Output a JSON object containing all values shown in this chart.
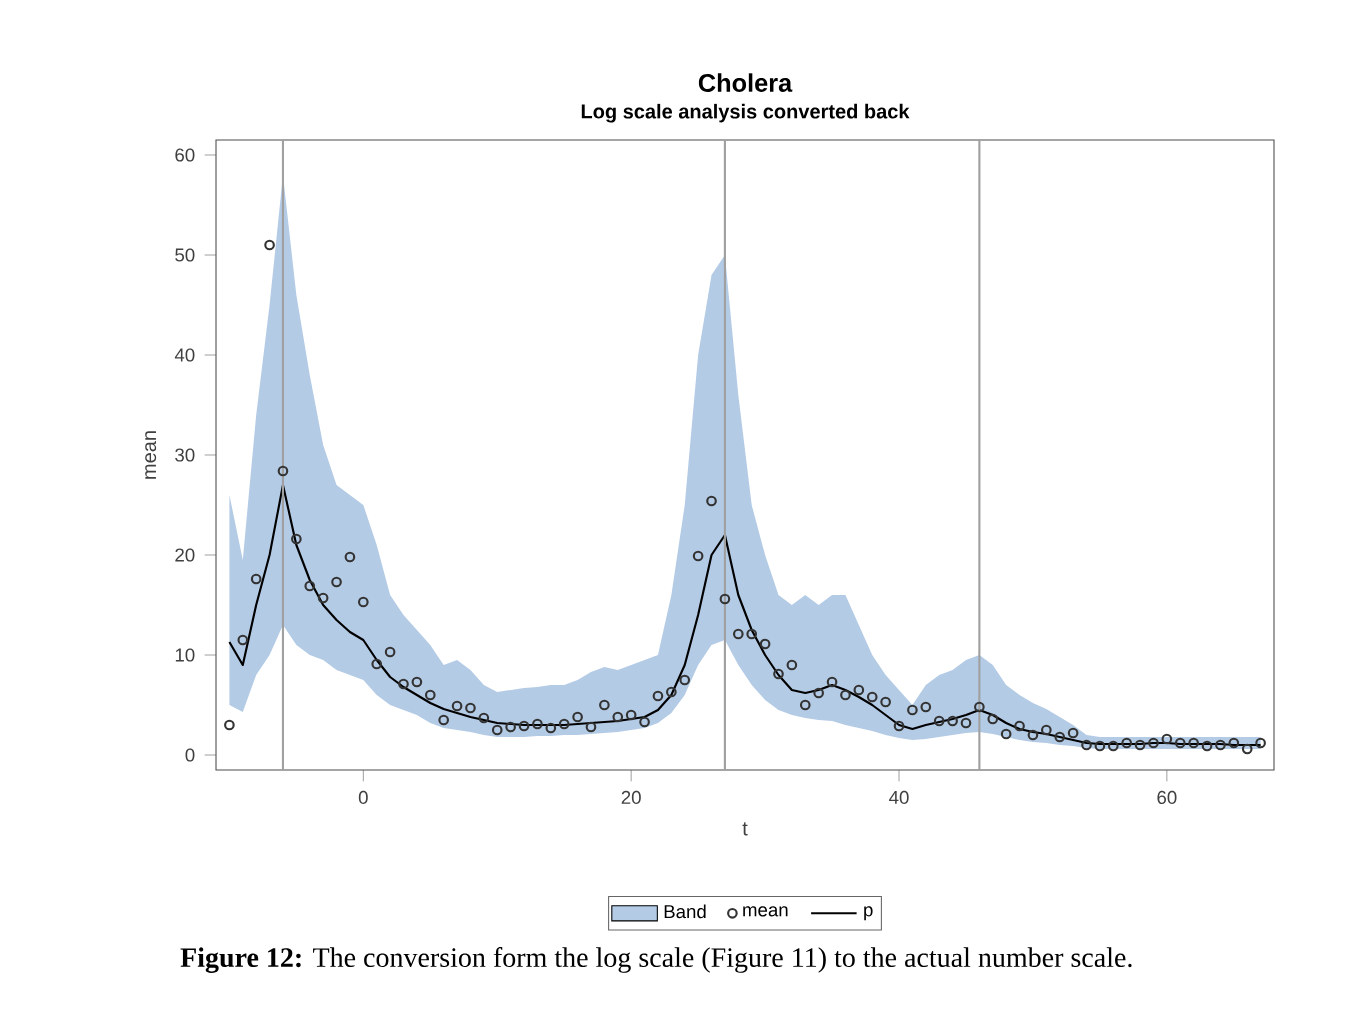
{
  "chart_data": {
    "type": "line",
    "title": "Cholera",
    "subtitle": "Log scale analysis converted back",
    "xlabel": "t",
    "ylabel": "mean",
    "x": [
      -10,
      -9,
      -8,
      -7,
      -6,
      -5,
      -4,
      -3,
      -2,
      -1,
      0,
      1,
      2,
      3,
      4,
      5,
      6,
      7,
      8,
      9,
      10,
      11,
      12,
      13,
      14,
      15,
      16,
      17,
      18,
      19,
      20,
      21,
      22,
      23,
      24,
      25,
      26,
      27,
      28,
      29,
      30,
      31,
      32,
      33,
      34,
      35,
      36,
      37,
      38,
      39,
      40,
      41,
      42,
      43,
      44,
      45,
      46,
      47,
      48,
      49,
      50,
      51,
      52,
      53,
      54,
      55,
      56,
      57,
      58,
      59,
      60,
      61,
      62,
      63,
      64,
      65,
      66,
      67
    ],
    "series": [
      {
        "name": "Band",
        "type": "area",
        "color": "#b4cbe6",
        "values": [
          null,
          null,
          null,
          null,
          null,
          null,
          null,
          null,
          null,
          null,
          null,
          null,
          null,
          null,
          null,
          null,
          null,
          null,
          null,
          null,
          null,
          null,
          null,
          null,
          null,
          null,
          null,
          null,
          null,
          null,
          null,
          null,
          null,
          null,
          null,
          null,
          null,
          null,
          null,
          null,
          null,
          null,
          null,
          null,
          null,
          null,
          null,
          null,
          null,
          null,
          null,
          null,
          null,
          null,
          null,
          null,
          null,
          null,
          null,
          null,
          null,
          null,
          null,
          null,
          null,
          null,
          null,
          null,
          null,
          null,
          null,
          null,
          null,
          null,
          null,
          null,
          null,
          null
        ]
      },
      {
        "name": "mean",
        "type": "scatter",
        "color": "#333333",
        "marker": "circle",
        "values": [
          3,
          11.5,
          17.6,
          51,
          28.4,
          21.6,
          16.9,
          15.7,
          17.3,
          19.8,
          15.3,
          9.1,
          10.3,
          7.1,
          7.3,
          6,
          3.5,
          4.9,
          4.7,
          3.7,
          2.5,
          2.8,
          2.9,
          3.1,
          2.7,
          3.1,
          3.8,
          2.8,
          5,
          3.8,
          4,
          3.3,
          5.9,
          6.3,
          7.5,
          19.9,
          25.4,
          15.6,
          12.1,
          12.1,
          11.1,
          8.1,
          9,
          5,
          6.2,
          7.3,
          6,
          6.5,
          5.8,
          5.3,
          2.9,
          4.5,
          4.8,
          3.4,
          3.4,
          3.2,
          4.8,
          3.6,
          2.1,
          2.9,
          2,
          2.5,
          1.8,
          2.2,
          1,
          0.9,
          0.9,
          1.2,
          1,
          1.2,
          1.6,
          1.2,
          1.2,
          0.9,
          1,
          1.2,
          0.6,
          1.2
        ]
      },
      {
        "name": "p",
        "type": "line",
        "color": "#000000",
        "line_style": "solid",
        "values": [
          11.3,
          9,
          15,
          20,
          27,
          21,
          17.5,
          15,
          13.5,
          12.3,
          11.5,
          9.5,
          7.8,
          6.8,
          6,
          5.2,
          4.6,
          4.2,
          3.8,
          3.5,
          3.2,
          3.1,
          3,
          3,
          3,
          3,
          3.1,
          3.2,
          3.3,
          3.4,
          3.6,
          3.8,
          4.5,
          6,
          9,
          14,
          20,
          22,
          16,
          12.5,
          10,
          8,
          6.5,
          6.2,
          6.5,
          7,
          6.5,
          5.8,
          5,
          4,
          3,
          2.6,
          3,
          3.3,
          3.6,
          4,
          4.5,
          4,
          3.2,
          2.6,
          2.3,
          2.1,
          1.8,
          1.5,
          1.2,
          1.1,
          1.1,
          1.1,
          1.1,
          1.2,
          1.2,
          1.1,
          1.1,
          1.1,
          1.1,
          1,
          1,
          1
        ],
        "lower": [
          5,
          4.3,
          8,
          10,
          13,
          11,
          10,
          9.5,
          8.5,
          8,
          7.5,
          6,
          5,
          4.5,
          4,
          3.2,
          2.7,
          2.5,
          2.3,
          2,
          1.8,
          1.8,
          1.8,
          1.9,
          1.9,
          2,
          2,
          2.1,
          2.2,
          2.3,
          2.5,
          2.7,
          3.2,
          4.2,
          6,
          9,
          11,
          11.5,
          9,
          7,
          5.5,
          4.5,
          4,
          3.7,
          3.5,
          3.4,
          3,
          2.7,
          2.4,
          2,
          1.7,
          1.5,
          1.6,
          1.8,
          2,
          2.2,
          2.3,
          2.1,
          1.8,
          1.5,
          1.3,
          1.2,
          1,
          0.9,
          0.7,
          0.6,
          0.6,
          0.6,
          0.6,
          0.6,
          0.6,
          0.6,
          0.6,
          0.6,
          0.6,
          0.6,
          0.6,
          0.6
        ],
        "upper": [
          26,
          19.5,
          34,
          45,
          58,
          46,
          38,
          31,
          27,
          26,
          25,
          21,
          16,
          14,
          12.5,
          11,
          9,
          9.5,
          8.5,
          7,
          6.3,
          6.5,
          6.7,
          6.8,
          7,
          7,
          7.5,
          8.3,
          8.8,
          8.5,
          9,
          9.5,
          10,
          16,
          25,
          40,
          48,
          50,
          36,
          25,
          20,
          16,
          15,
          16,
          15,
          16,
          16,
          13,
          10,
          8,
          6.5,
          5,
          7,
          8,
          8.5,
          9.5,
          10,
          9,
          7,
          6,
          5.2,
          4.6,
          3.8,
          3,
          2,
          1.8,
          1.8,
          1.8,
          1.8,
          1.8,
          1.8,
          1.8,
          1.8,
          1.8,
          1.8,
          1.8,
          1.8,
          1.8
        ]
      }
    ],
    "xlim": [
      -11,
      68
    ],
    "ylim": [
      -1.5,
      61.5
    ],
    "xticks": [
      0,
      20,
      40,
      60
    ],
    "yticks": [
      0,
      10,
      20,
      30,
      40,
      50,
      60
    ],
    "ref_lines": [
      {
        "axis": "x",
        "value": -6,
        "color": "#a0a0a0"
      },
      {
        "axis": "x",
        "value": 27,
        "color": "#a0a0a0"
      },
      {
        "axis": "x",
        "value": 46,
        "color": "#a0a0a0"
      }
    ],
    "grid": false,
    "legend": "bottom",
    "annotations": [
      "**Figure 12:** The conversion form the log scale (Figure 11) to the actual number scale."
    ]
  }
}
